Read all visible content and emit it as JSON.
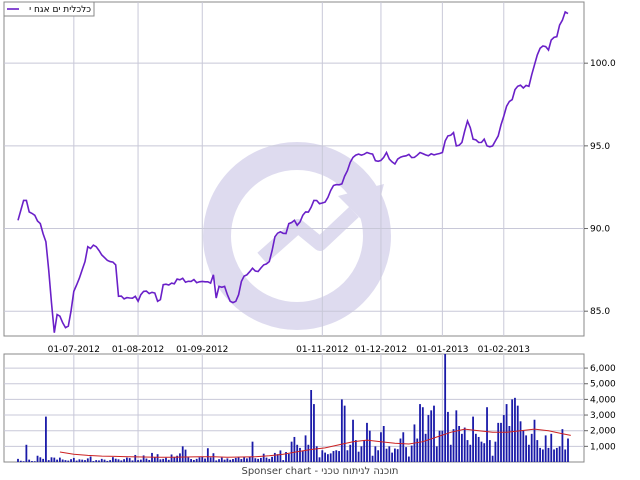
{
  "chart_data": [
    {
      "type": "line",
      "legend": "כלכלית ים אגח י",
      "line_color": "#6a20c8",
      "ylim": [
        83.5,
        103.7
      ],
      "yticks": [
        85,
        90,
        95,
        100
      ],
      "ytick_labels": [
        "85.0",
        "90.0",
        "95.0",
        "100.0"
      ],
      "x_ticks": [
        {
          "label": "01-07-2012",
          "index": 20
        },
        {
          "label": "01-08-2012",
          "index": 43
        },
        {
          "label": "01-09-2012",
          "index": 66
        },
        {
          "label": "01-11-2012",
          "index": 109
        },
        {
          "label": "01-12-2012",
          "index": 130
        },
        {
          "label": "01-01-2013",
          "index": 152
        },
        {
          "label": "01-02-2013",
          "index": 174
        }
      ],
      "n": 198,
      "keypoints": [
        [
          0,
          90.5
        ],
        [
          2,
          91.7
        ],
        [
          3,
          91.7
        ],
        [
          4,
          91.0
        ],
        [
          6,
          90.8
        ],
        [
          8,
          90.3
        ],
        [
          10,
          89.2
        ],
        [
          11,
          87.5
        ],
        [
          12,
          85.5
        ],
        [
          13,
          83.7
        ],
        [
          14,
          84.8
        ],
        [
          15,
          84.7
        ],
        [
          16,
          84.3
        ],
        [
          17,
          84.0
        ],
        [
          18,
          84.1
        ],
        [
          19,
          85.0
        ],
        [
          20,
          86.2
        ],
        [
          22,
          87.0
        ],
        [
          24,
          88.0
        ],
        [
          25,
          88.9
        ],
        [
          28,
          88.9
        ],
        [
          30,
          88.4
        ],
        [
          33,
          88.0
        ],
        [
          35,
          87.8
        ],
        [
          36,
          85.9
        ],
        [
          40,
          85.8
        ],
        [
          42,
          85.9
        ],
        [
          43,
          85.6
        ],
        [
          44,
          86.0
        ],
        [
          45,
          86.2
        ],
        [
          49,
          86.1
        ],
        [
          50,
          85.6
        ],
        [
          51,
          85.7
        ],
        [
          52,
          86.6
        ],
        [
          55,
          86.7
        ],
        [
          58,
          86.9
        ],
        [
          62,
          86.8
        ],
        [
          66,
          86.8
        ],
        [
          69,
          86.7
        ],
        [
          70,
          87.2
        ],
        [
          71,
          85.8
        ],
        [
          72,
          86.5
        ],
        [
          74,
          86.5
        ],
        [
          75,
          86.0
        ],
        [
          76,
          85.6
        ],
        [
          78,
          85.6
        ],
        [
          79,
          86.0
        ],
        [
          80,
          86.8
        ],
        [
          82,
          87.2
        ],
        [
          84,
          87.6
        ],
        [
          86,
          87.4
        ],
        [
          88,
          87.8
        ],
        [
          90,
          88.0
        ],
        [
          92,
          89.5
        ],
        [
          94,
          89.8
        ],
        [
          96,
          89.7
        ],
        [
          97,
          90.3
        ],
        [
          99,
          90.5
        ],
        [
          100,
          90.2
        ],
        [
          102,
          90.8
        ],
        [
          104,
          91.0
        ],
        [
          106,
          91.7
        ],
        [
          108,
          91.5
        ],
        [
          110,
          91.6
        ],
        [
          112,
          92.3
        ],
        [
          113,
          92.6
        ],
        [
          116,
          92.7
        ],
        [
          118,
          93.5
        ],
        [
          119,
          94.0
        ],
        [
          120,
          94.3
        ],
        [
          122,
          94.5
        ],
        [
          125,
          94.6
        ],
        [
          127,
          94.5
        ],
        [
          128,
          94.1
        ],
        [
          131,
          94.3
        ],
        [
          132,
          94.6
        ],
        [
          133,
          94.2
        ],
        [
          135,
          93.9
        ],
        [
          136,
          94.2
        ],
        [
          139,
          94.4
        ],
        [
          142,
          94.3
        ],
        [
          144,
          94.6
        ],
        [
          147,
          94.4
        ],
        [
          150,
          94.5
        ],
        [
          152,
          94.6
        ],
        [
          153,
          95.3
        ],
        [
          154,
          95.6
        ],
        [
          156,
          95.8
        ],
        [
          157,
          95.0
        ],
        [
          159,
          95.2
        ],
        [
          160,
          95.9
        ],
        [
          161,
          96.5
        ],
        [
          162,
          96.1
        ],
        [
          163,
          95.4
        ],
        [
          165,
          95.2
        ],
        [
          167,
          95.4
        ],
        [
          168,
          95.0
        ],
        [
          170,
          95.0
        ],
        [
          171,
          95.3
        ],
        [
          172,
          95.6
        ],
        [
          174,
          96.8
        ],
        [
          175,
          97.4
        ],
        [
          177,
          97.8
        ],
        [
          178,
          98.4
        ],
        [
          179,
          98.6
        ],
        [
          181,
          98.5
        ],
        [
          183,
          98.6
        ],
        [
          184,
          99.3
        ],
        [
          185,
          99.9
        ],
        [
          186,
          100.5
        ],
        [
          187,
          100.9
        ],
        [
          189,
          101.0
        ],
        [
          190,
          100.8
        ],
        [
          191,
          101.4
        ],
        [
          193,
          101.6
        ],
        [
          194,
          102.3
        ],
        [
          195,
          102.6
        ],
        [
          196,
          103.1
        ],
        [
          197,
          103.0
        ]
      ]
    },
    {
      "type": "bar",
      "bar_color": "#1a1aa8",
      "ma_color": "#cc2222",
      "ylim": [
        0,
        6900
      ],
      "yticks": [
        1000,
        2000,
        3000,
        4000,
        5000,
        6000
      ],
      "ytick_labels": [
        "1,000",
        "2,000",
        "3,000",
        "4,000",
        "5,000",
        "6,000"
      ],
      "n": 198,
      "values": [
        200,
        80,
        50,
        1100,
        150,
        60,
        50,
        400,
        300,
        200,
        2900,
        120,
        300,
        280,
        150,
        280,
        160,
        120,
        90,
        180,
        260,
        90,
        170,
        150,
        120,
        230,
        350,
        60,
        120,
        100,
        200,
        150,
        70,
        120,
        310,
        210,
        170,
        100,
        180,
        280,
        250,
        100,
        450,
        120,
        150,
        420,
        220,
        130,
        580,
        290,
        500,
        170,
        200,
        270,
        140,
        480,
        300,
        400,
        550,
        1000,
        790,
        300,
        190,
        130,
        200,
        300,
        350,
        220,
        880,
        290,
        560,
        100,
        180,
        280,
        150,
        230,
        140,
        190,
        260,
        300,
        190,
        310,
        230,
        350,
        1300,
        240,
        200,
        260,
        530,
        280,
        200,
        330,
        580,
        500,
        740,
        120,
        640,
        520,
        1300,
        1600,
        1100,
        900,
        700,
        1700,
        1100,
        4600,
        3700,
        1000,
        300,
        750,
        600,
        500,
        550,
        700,
        750,
        700,
        4000,
        3600,
        750,
        1100,
        2700,
        1400,
        660,
        1000,
        1400,
        2500,
        2000,
        400,
        1000,
        750,
        1900,
        2300,
        850,
        1000,
        600,
        860,
        820,
        1500,
        1900,
        950,
        350,
        1050,
        2400,
        1500,
        3700,
        3500,
        1800,
        3000,
        3300,
        3600,
        1000,
        2000,
        2000,
        6900,
        3200,
        1100,
        2100,
        3300,
        2300,
        1800,
        2200,
        1400,
        1100,
        2900,
        1800,
        1600,
        1300,
        1200,
        3500,
        1400,
        400,
        1300,
        2500,
        2500,
        3000,
        3700,
        2300,
        4000,
        4100,
        3600,
        2600,
        2000,
        1700,
        1100,
        1800,
        2700,
        1400,
        900,
        800,
        1700,
        900,
        1800,
        800,
        900,
        1000,
        2100,
        800,
        1500
      ],
      "moving_average": [
        [
          15,
          640
        ],
        [
          20,
          500
        ],
        [
          25,
          420
        ],
        [
          30,
          380
        ],
        [
          35,
          360
        ],
        [
          40,
          330
        ],
        [
          45,
          320
        ],
        [
          50,
          300
        ],
        [
          55,
          300
        ],
        [
          60,
          320
        ],
        [
          65,
          340
        ],
        [
          70,
          330
        ],
        [
          75,
          300
        ],
        [
          80,
          320
        ],
        [
          85,
          330
        ],
        [
          90,
          400
        ],
        [
          95,
          500
        ],
        [
          100,
          650
        ],
        [
          105,
          800
        ],
        [
          110,
          900
        ],
        [
          115,
          1100
        ],
        [
          120,
          1300
        ],
        [
          125,
          1400
        ],
        [
          130,
          1300
        ],
        [
          135,
          1200
        ],
        [
          140,
          1150
        ],
        [
          145,
          1300
        ],
        [
          150,
          1600
        ],
        [
          155,
          1900
        ],
        [
          160,
          2100
        ],
        [
          165,
          2000
        ],
        [
          170,
          1900
        ],
        [
          175,
          1900
        ],
        [
          180,
          2000
        ],
        [
          185,
          2100
        ],
        [
          190,
          2000
        ],
        [
          195,
          1800
        ],
        [
          198,
          1700
        ]
      ]
    }
  ],
  "footer": "Sponser chart - תוכנה לניתוח טכני"
}
